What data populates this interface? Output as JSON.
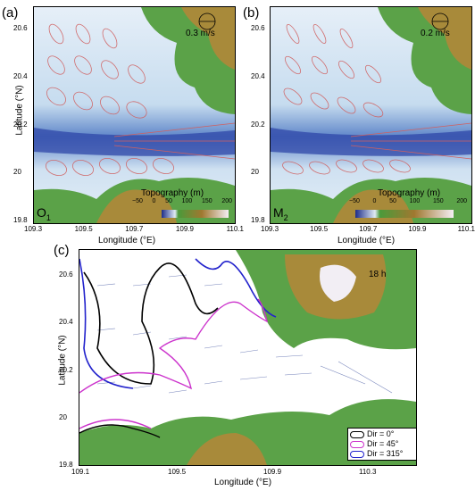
{
  "figure": {
    "panels": [
      {
        "letter": "(a)",
        "constituent": "O",
        "subscript": "1",
        "scale_label": "0.3 m/s",
        "colorbar_title": "Topography (m)",
        "colorbar_ticks": [
          "−50",
          "0",
          "50",
          "100",
          "150",
          "200"
        ],
        "x_ticks": [
          "109.3",
          "109.5",
          "109.7",
          "109.9",
          "110.1"
        ],
        "y_ticks": [
          "20.6",
          "20.4",
          "20.2",
          "20",
          "19.8"
        ],
        "xlabel": "Longitude (°E)",
        "ylabel": "Latitude (°N)"
      },
      {
        "letter": "(b)",
        "constituent": "M",
        "subscript": "2",
        "scale_label": "0.2 m/s",
        "colorbar_title": "Topography (m)",
        "colorbar_ticks": [
          "−50",
          "0",
          "50",
          "100",
          "150",
          "200"
        ],
        "x_ticks": [
          "109.3",
          "109.5",
          "109.7",
          "109.9",
          "110.1"
        ],
        "y_ticks": [
          "20.6",
          "20.4",
          "20.2",
          "20",
          "19.8"
        ],
        "xlabel": "Longitude (°E)"
      },
      {
        "letter": "(c)",
        "time_label": "18 h",
        "x_ticks": [
          "109.1",
          "109.5",
          "109.9",
          "110.3"
        ],
        "y_ticks": [
          "20.6",
          "20.4",
          "20.2",
          "20",
          "19.8"
        ],
        "xlabel": "Longitude (°E)",
        "ylabel": "Latitude (°N)",
        "legend": [
          {
            "label": "Dir = 0°",
            "color": "#000000"
          },
          {
            "label": "Dir = 45°",
            "color": "#cc33cc"
          },
          {
            "label": "Dir = 315°",
            "color": "#2222cc"
          }
        ]
      }
    ],
    "colors": {
      "land_green": "#4a9a3a",
      "land_brown": "#a07830",
      "shallow": "#dfeaf4",
      "deep": "#1d2d8a",
      "ellipse": "#e06060"
    }
  }
}
